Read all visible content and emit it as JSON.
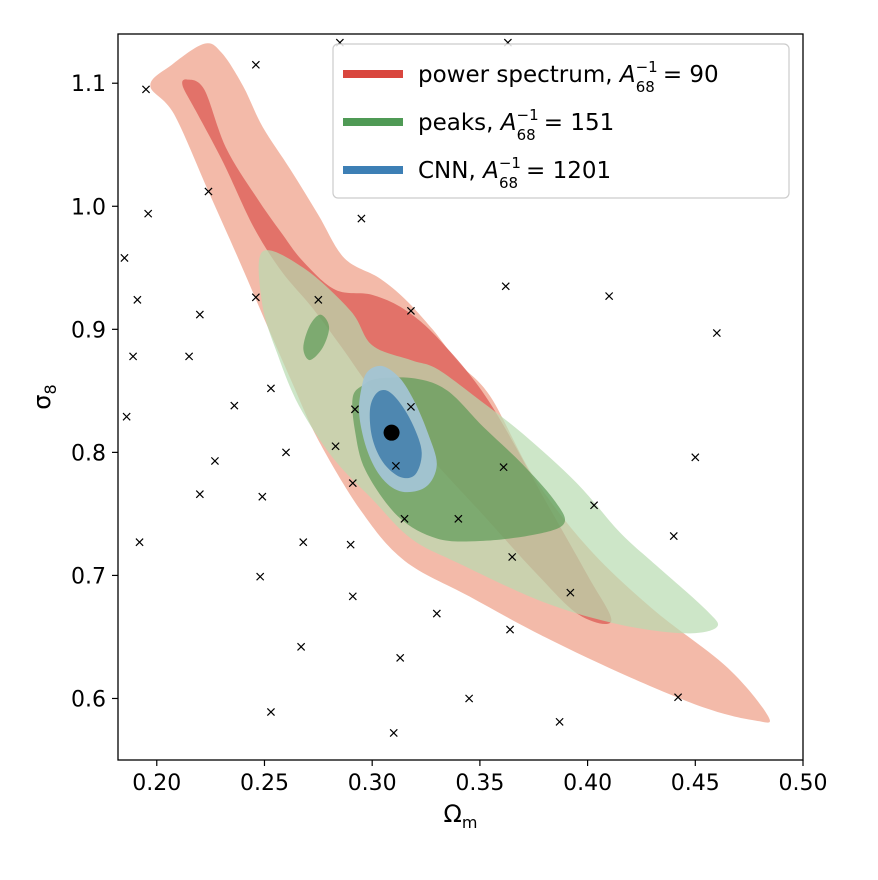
{
  "chart_data": {
    "type": "scatter",
    "xlabel_symbol": "Ω",
    "xlabel_sub": "m",
    "ylabel_symbol": "σ",
    "ylabel_sub": "8",
    "xlim": [
      0.182,
      0.5
    ],
    "ylim": [
      0.55,
      1.14
    ],
    "xticks": [
      "0.20",
      "0.25",
      "0.30",
      "0.35",
      "0.40",
      "0.45",
      "0.50"
    ],
    "yticks": [
      "0.6",
      "0.7",
      "0.8",
      "0.9",
      "1.0",
      "1.1"
    ],
    "grid": false,
    "legend_position": "top-right",
    "legend": [
      {
        "label": "power spectrum,",
        "metric_base": "A",
        "metric_sup": "−1",
        "metric_sub": "68",
        "metric_value": "= 90",
        "color": "#d9463e"
      },
      {
        "label": "peaks,",
        "metric_base": "A",
        "metric_sup": "−1",
        "metric_sub": "68",
        "metric_value": "= 151",
        "color": "#4f9a55"
      },
      {
        "label": "CNN,",
        "metric_base": "A",
        "metric_sup": "−1",
        "metric_sub": "68",
        "metric_value": "= 1201",
        "color": "#3d7fb5"
      }
    ],
    "series": [
      {
        "name": "power spectrum",
        "color_outer": "#f2b3a0",
        "color_inner": "#e06a62",
        "outer": [
          [
            0.207,
            1.115
          ],
          [
            0.222,
            1.132
          ],
          [
            0.23,
            1.125
          ],
          [
            0.24,
            1.098
          ],
          [
            0.249,
            1.065
          ],
          [
            0.262,
            1.03
          ],
          [
            0.275,
            0.993
          ],
          [
            0.287,
            0.958
          ],
          [
            0.303,
            0.942
          ],
          [
            0.315,
            0.925
          ],
          [
            0.328,
            0.9
          ],
          [
            0.34,
            0.873
          ],
          [
            0.355,
            0.845
          ],
          [
            0.375,
            0.78
          ],
          [
            0.4,
            0.723
          ],
          [
            0.43,
            0.673
          ],
          [
            0.465,
            0.625
          ],
          [
            0.484,
            0.585
          ],
          [
            0.478,
            0.582
          ],
          [
            0.455,
            0.592
          ],
          [
            0.42,
            0.617
          ],
          [
            0.38,
            0.65
          ],
          [
            0.345,
            0.683
          ],
          [
            0.315,
            0.712
          ],
          [
            0.295,
            0.752
          ],
          [
            0.275,
            0.81
          ],
          [
            0.262,
            0.86
          ],
          [
            0.25,
            0.908
          ],
          [
            0.238,
            0.957
          ],
          [
            0.224,
            1.012
          ],
          [
            0.208,
            1.075
          ],
          [
            0.197,
            1.098
          ]
        ],
        "inner": [
          [
            0.214,
            1.103
          ],
          [
            0.222,
            1.095
          ],
          [
            0.232,
            1.048
          ],
          [
            0.246,
            1.008
          ],
          [
            0.258,
            0.978
          ],
          [
            0.268,
            0.955
          ],
          [
            0.283,
            0.932
          ],
          [
            0.3,
            0.928
          ],
          [
            0.316,
            0.915
          ],
          [
            0.332,
            0.89
          ],
          [
            0.354,
            0.842
          ],
          [
            0.38,
            0.762
          ],
          [
            0.4,
            0.7
          ],
          [
            0.411,
            0.663
          ],
          [
            0.396,
            0.668
          ],
          [
            0.376,
            0.702
          ],
          [
            0.35,
            0.752
          ],
          [
            0.33,
            0.79
          ],
          [
            0.31,
            0.83
          ],
          [
            0.298,
            0.855
          ],
          [
            0.286,
            0.885
          ],
          [
            0.272,
            0.918
          ],
          [
            0.258,
            0.947
          ],
          [
            0.245,
            0.983
          ],
          [
            0.231,
            1.035
          ],
          [
            0.218,
            1.078
          ],
          [
            0.212,
            1.098
          ]
        ]
      },
      {
        "name": "peaks",
        "color_outer": "#b8dcb0",
        "color_inner": "#5c9a55",
        "outer": [
          [
            0.249,
            0.963
          ],
          [
            0.268,
            0.95
          ],
          [
            0.29,
            0.915
          ],
          [
            0.3,
            0.887
          ],
          [
            0.318,
            0.875
          ],
          [
            0.33,
            0.868
          ],
          [
            0.348,
            0.845
          ],
          [
            0.37,
            0.815
          ],
          [
            0.395,
            0.775
          ],
          [
            0.415,
            0.735
          ],
          [
            0.432,
            0.708
          ],
          [
            0.455,
            0.672
          ],
          [
            0.46,
            0.658
          ],
          [
            0.445,
            0.653
          ],
          [
            0.415,
            0.66
          ],
          [
            0.38,
            0.678
          ],
          [
            0.34,
            0.71
          ],
          [
            0.318,
            0.73
          ],
          [
            0.3,
            0.762
          ],
          [
            0.282,
            0.795
          ],
          [
            0.266,
            0.838
          ],
          [
            0.256,
            0.88
          ],
          [
            0.249,
            0.92
          ]
        ],
        "inner": [
          [
            0.291,
            0.845
          ],
          [
            0.296,
            0.855
          ],
          [
            0.303,
            0.86
          ],
          [
            0.32,
            0.86
          ],
          [
            0.335,
            0.85
          ],
          [
            0.352,
            0.82
          ],
          [
            0.37,
            0.79
          ],
          [
            0.385,
            0.76
          ],
          [
            0.389,
            0.742
          ],
          [
            0.375,
            0.733
          ],
          [
            0.35,
            0.728
          ],
          [
            0.33,
            0.73
          ],
          [
            0.312,
            0.748
          ],
          [
            0.297,
            0.785
          ],
          [
            0.292,
            0.818
          ]
        ],
        "inner_island": [
          [
            0.271,
            0.903
          ],
          [
            0.276,
            0.912
          ],
          [
            0.28,
            0.902
          ],
          [
            0.277,
            0.885
          ],
          [
            0.271,
            0.875
          ],
          [
            0.268,
            0.885
          ]
        ]
      },
      {
        "name": "CNN",
        "color_outer": "#a3c4d4",
        "color_inner": "#4a84ae",
        "outer": [
          [
            0.298,
            0.866
          ],
          [
            0.305,
            0.87
          ],
          [
            0.313,
            0.86
          ],
          [
            0.32,
            0.84
          ],
          [
            0.326,
            0.815
          ],
          [
            0.33,
            0.79
          ],
          [
            0.325,
            0.772
          ],
          [
            0.314,
            0.768
          ],
          [
            0.305,
            0.778
          ],
          [
            0.298,
            0.8
          ],
          [
            0.294,
            0.83
          ],
          [
            0.295,
            0.852
          ]
        ],
        "inner": [
          [
            0.302,
            0.848
          ],
          [
            0.307,
            0.85
          ],
          [
            0.313,
            0.84
          ],
          [
            0.319,
            0.822
          ],
          [
            0.323,
            0.8
          ],
          [
            0.32,
            0.782
          ],
          [
            0.313,
            0.78
          ],
          [
            0.305,
            0.792
          ],
          [
            0.3,
            0.812
          ],
          [
            0.299,
            0.835
          ]
        ]
      }
    ],
    "fiducial": {
      "x": 0.309,
      "y": 0.816
    },
    "points": [
      [
        0.195,
        1.095
      ],
      [
        0.246,
        1.115
      ],
      [
        0.285,
        1.133
      ],
      [
        0.363,
        1.133
      ],
      [
        0.224,
        1.012
      ],
      [
        0.196,
        0.994
      ],
      [
        0.295,
        0.99
      ],
      [
        0.185,
        0.958
      ],
      [
        0.191,
        0.924
      ],
      [
        0.362,
        0.935
      ],
      [
        0.41,
        0.927
      ],
      [
        0.246,
        0.926
      ],
      [
        0.275,
        0.924
      ],
      [
        0.318,
        0.915
      ],
      [
        0.22,
        0.912
      ],
      [
        0.46,
        0.897
      ],
      [
        0.189,
        0.878
      ],
      [
        0.215,
        0.878
      ],
      [
        0.236,
        0.838
      ],
      [
        0.253,
        0.852
      ],
      [
        0.292,
        0.835
      ],
      [
        0.318,
        0.837
      ],
      [
        0.186,
        0.829
      ],
      [
        0.283,
        0.805
      ],
      [
        0.26,
        0.8
      ],
      [
        0.227,
        0.793
      ],
      [
        0.311,
        0.789
      ],
      [
        0.361,
        0.788
      ],
      [
        0.45,
        0.796
      ],
      [
        0.291,
        0.775
      ],
      [
        0.22,
        0.766
      ],
      [
        0.249,
        0.764
      ],
      [
        0.403,
        0.757
      ],
      [
        0.315,
        0.746
      ],
      [
        0.34,
        0.746
      ],
      [
        0.192,
        0.727
      ],
      [
        0.268,
        0.727
      ],
      [
        0.29,
        0.725
      ],
      [
        0.44,
        0.732
      ],
      [
        0.365,
        0.715
      ],
      [
        0.248,
        0.699
      ],
      [
        0.392,
        0.686
      ],
      [
        0.291,
        0.683
      ],
      [
        0.33,
        0.669
      ],
      [
        0.364,
        0.656
      ],
      [
        0.267,
        0.642
      ],
      [
        0.313,
        0.633
      ],
      [
        0.345,
        0.6
      ],
      [
        0.442,
        0.601
      ],
      [
        0.253,
        0.589
      ],
      [
        0.387,
        0.581
      ],
      [
        0.31,
        0.572
      ]
    ]
  }
}
